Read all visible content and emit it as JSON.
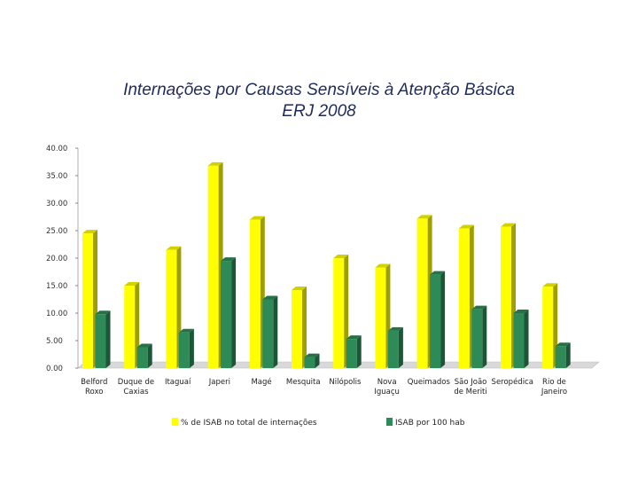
{
  "chart_data": {
    "type": "bar",
    "title_line1": "Internações por Causas Sensíveis à Atenção Básica",
    "title_line2": "ERJ 2008",
    "xlabel": "",
    "ylabel": "",
    "ylim": [
      0,
      40
    ],
    "y_ticks": [
      "0.00",
      "5.00",
      "10.00",
      "15.00",
      "20.00",
      "25.00",
      "30.00",
      "35.00",
      "40.00"
    ],
    "categories": [
      [
        "Belford",
        "Roxo"
      ],
      [
        "Duque de",
        "Caxias"
      ],
      [
        "Itaguaí"
      ],
      [
        "Japeri"
      ],
      [
        "Magé"
      ],
      [
        "Mesquita"
      ],
      [
        "Nilópolis"
      ],
      [
        "Nova",
        "Iguaçu"
      ],
      [
        "Queimados"
      ],
      [
        "São João",
        "de Meriti"
      ],
      [
        "Seropédica"
      ],
      [
        "Rio de",
        "Janeiro"
      ]
    ],
    "series": [
      {
        "name": "% de ISAB no total de internações",
        "color": "#ffff00",
        "values": [
          24.5,
          15.0,
          21.5,
          36.8,
          27.0,
          14.2,
          20.0,
          18.3,
          27.2,
          25.4,
          25.7,
          14.8
        ]
      },
      {
        "name": "ISAB por 100 hab",
        "color": "#2e8b57",
        "values": [
          9.8,
          3.8,
          6.5,
          19.5,
          12.5,
          2.0,
          5.3,
          6.8,
          17.0,
          10.7,
          10.0,
          4.0
        ]
      }
    ],
    "grid": false,
    "legend_position": "bottom",
    "style": "3d"
  }
}
